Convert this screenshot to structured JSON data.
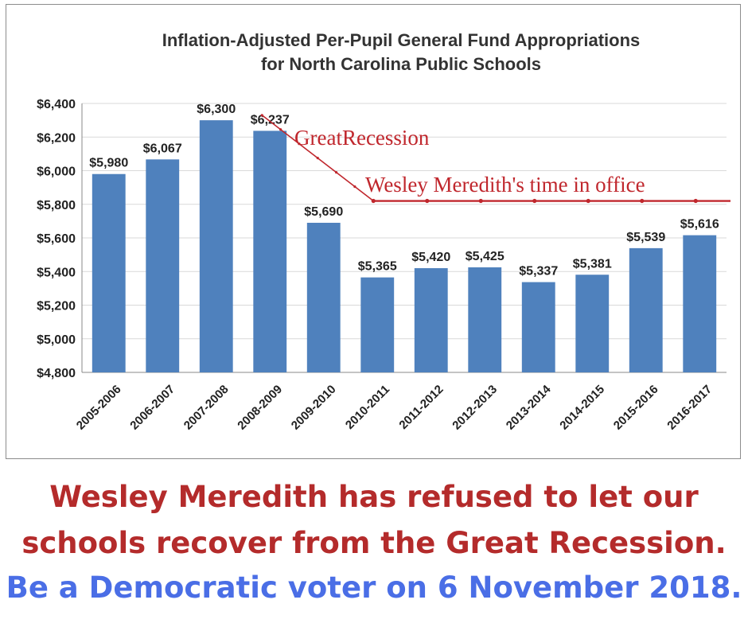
{
  "chart_data": {
    "type": "bar",
    "title": "Inflation-Adjusted Per-Pupil General Fund Appropriations",
    "subtitle": "for North Carolina Public Schools",
    "categories": [
      "2005-2006",
      "2006-2007",
      "2007-2008",
      "2008-2009",
      "2009-2010",
      "2010-2011",
      "2011-2012",
      "2012-2013",
      "2013-2014",
      "2014-2015",
      "2015-2016",
      "2016-2017"
    ],
    "values": [
      5980,
      6067,
      6300,
      6237,
      5690,
      5365,
      5420,
      5425,
      5337,
      5381,
      5539,
      5616
    ],
    "data_labels": [
      "$5,980",
      "$6,067",
      "$6,300",
      "$6,237",
      "$5,690",
      "$5,365",
      "$5,420",
      "$5,425",
      "$5,337",
      "$5,381",
      "$5,539",
      "$5,616"
    ],
    "ylim": [
      4800,
      6400
    ],
    "yticks": [
      4800,
      5000,
      5200,
      5400,
      5600,
      5800,
      6000,
      6200,
      6400
    ],
    "ytick_labels": [
      "$4,800",
      "$5,000",
      "$5,200",
      "$5,400",
      "$5,600",
      "$5,800",
      "$6,000",
      "$6,200",
      "$6,400"
    ],
    "grid": true,
    "bar_color": "#4f81bd",
    "annotations": {
      "recession_label": "GreatRecession",
      "office_label": "Wesley Meredith's time in office",
      "color": "#c0272d"
    }
  },
  "caption": {
    "line1": "Wesley Meredith has refused to let our",
    "line2": "schools recover from the Great Recession.",
    "line3": "Be a Democratic voter on 6 November 2018.",
    "color_red": "#b42b2b",
    "color_blue": "#4a6ee6"
  }
}
